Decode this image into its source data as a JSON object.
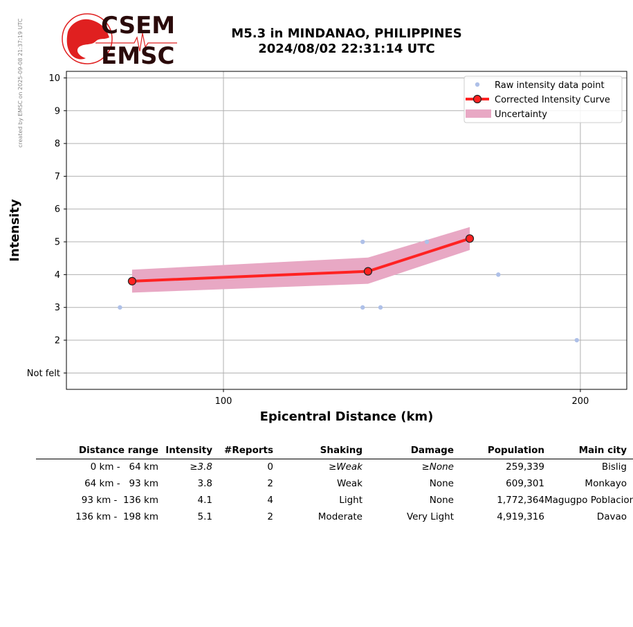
{
  "credit": "created by EMSC on 2025-09-08 21:37:19 UTC",
  "logo": {
    "line1": "CSEM",
    "line2": "EMSC"
  },
  "title": {
    "line1": "M5.3 in MINDANAO, PHILIPPINES",
    "line2": "2024/08/02 22:31:14 UTC"
  },
  "colors": {
    "raw": "#aec0e8",
    "curve": "#ff2222",
    "uncertainty": "#e8a8c4",
    "grid": "#b0b0b0",
    "logo_red": "#e02020"
  },
  "chart_data": {
    "type": "scatter",
    "xlabel": "Epicentral Distance (km)",
    "ylabel": "Intensity",
    "xlim": [
      56,
      213
    ],
    "ylim": [
      0.5,
      10.2
    ],
    "x_ticks": [
      100,
      200
    ],
    "y_ticks": [
      {
        "value": 1,
        "label": "Not felt"
      },
      {
        "value": 2,
        "label": "2"
      },
      {
        "value": 3,
        "label": "3"
      },
      {
        "value": 4,
        "label": "4"
      },
      {
        "value": 5,
        "label": "5"
      },
      {
        "value": 6,
        "label": "6"
      },
      {
        "value": 7,
        "label": "7"
      },
      {
        "value": 8,
        "label": "8"
      },
      {
        "value": 9,
        "label": "9"
      },
      {
        "value": 10,
        "label": "10"
      }
    ],
    "grid": true,
    "legend_position": "top-right",
    "series": [
      {
        "name": "Raw intensity data point",
        "kind": "points",
        "x": [
          71,
          139,
          139,
          144,
          157,
          177,
          199
        ],
        "y": [
          3,
          5,
          3,
          3,
          5,
          4,
          2
        ]
      },
      {
        "name": "Corrected Intensity Curve",
        "kind": "line",
        "x": [
          74.4,
          140.5,
          169.0
        ],
        "y": [
          3.8,
          4.1,
          5.1
        ]
      },
      {
        "name": "Uncertainty",
        "kind": "band",
        "x": [
          74.4,
          140.5,
          169.0
        ],
        "lower": [
          3.45,
          3.72,
          4.75
        ],
        "upper": [
          4.15,
          4.52,
          5.45
        ]
      }
    ]
  },
  "table": {
    "headers": [
      "Distance range",
      "Intensity",
      "#Reports",
      "Shaking",
      "Damage",
      "Population",
      "Main city"
    ],
    "rows": [
      {
        "range": "0 km -   64 km",
        "intensity": "≥3.8",
        "reports": "0",
        "shaking": "≥Weak",
        "damage": "≥None",
        "population": "259,339",
        "city": "Bislig"
      },
      {
        "range": "64 km -   93 km",
        "intensity": "3.8",
        "reports": "2",
        "shaking": "Weak",
        "damage": "None",
        "population": "609,301",
        "city": "Monkayo"
      },
      {
        "range": "93 km -  136 km",
        "intensity": "4.1",
        "reports": "4",
        "shaking": "Light",
        "damage": "None",
        "population": "1,772,364",
        "city": "Magugpo Poblacion"
      },
      {
        "range": "136 km -  198 km",
        "intensity": "5.1",
        "reports": "2",
        "shaking": "Moderate",
        "damage": "Very Light",
        "population": "4,919,316",
        "city": "Davao"
      }
    ]
  }
}
